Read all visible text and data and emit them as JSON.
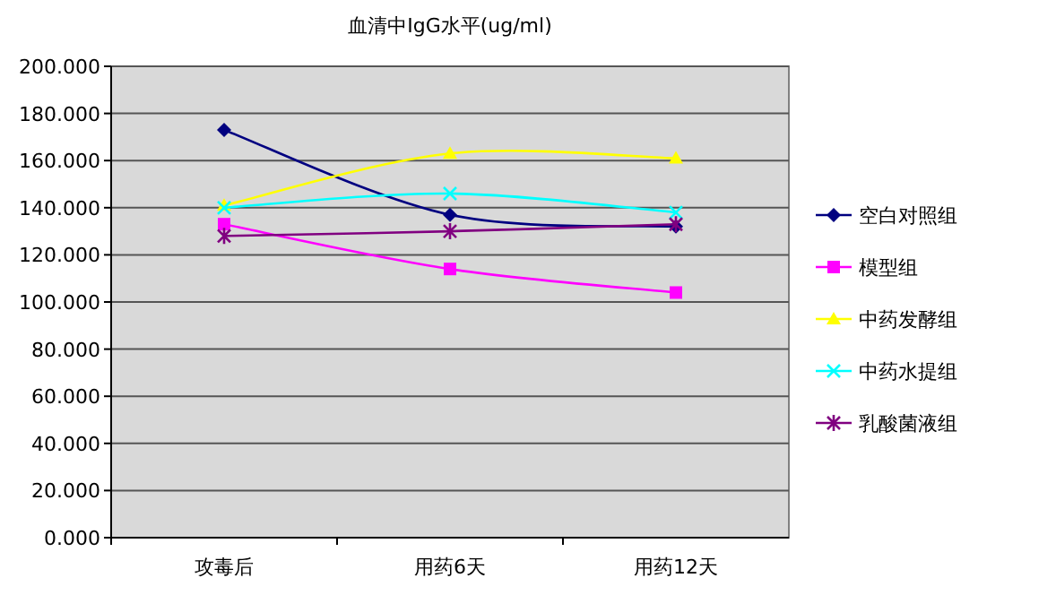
{
  "chart_data": {
    "type": "line",
    "title": "血清中IgG水平(ug/ml)",
    "categories": [
      "攻毒后",
      "用药6天",
      "用药12天"
    ],
    "ylim": [
      0,
      200
    ],
    "yticks": [
      {
        "value": 0,
        "label": "0.000"
      },
      {
        "value": 20,
        "label": "20.000"
      },
      {
        "value": 40,
        "label": "40.000"
      },
      {
        "value": 60,
        "label": "60.000"
      },
      {
        "value": 80,
        "label": "80.000"
      },
      {
        "value": 100,
        "label": "100.000"
      },
      {
        "value": 120,
        "label": "120.000"
      },
      {
        "value": 140,
        "label": "140.000"
      },
      {
        "value": 160,
        "label": "160.000"
      },
      {
        "value": 180,
        "label": "180.000"
      },
      {
        "value": 200,
        "label": "200.000"
      }
    ],
    "grid": "y",
    "legend": "right",
    "series": [
      {
        "name": "空白对照组",
        "color": "#000080",
        "marker": "diamond",
        "values": [
          173,
          137,
          132
        ]
      },
      {
        "name": "模型组",
        "color": "#ff00ff",
        "marker": "square",
        "values": [
          133,
          114,
          104
        ]
      },
      {
        "name": "中药发酵组",
        "color": "#ffff00",
        "marker": "triangle",
        "values": [
          141,
          163,
          161
        ]
      },
      {
        "name": "中药水提组",
        "color": "#00ffff",
        "marker": "cross",
        "values": [
          140,
          146,
          138
        ]
      },
      {
        "name": "乳酸菌液组",
        "color": "#800080",
        "marker": "cross",
        "values": [
          128,
          130,
          133
        ]
      }
    ]
  }
}
